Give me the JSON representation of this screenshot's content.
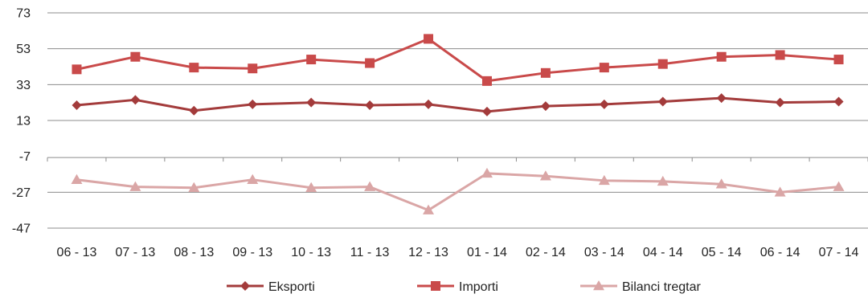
{
  "chart_data": {
    "type": "line",
    "categories": [
      "06 - 13",
      "07 - 13",
      "08 - 13",
      "09 - 13",
      "10 - 13",
      "11 - 13",
      "12 - 13",
      "01 - 14",
      "02 - 14",
      "03 - 14",
      "04 - 14",
      "05 - 14",
      "06 - 14",
      "07 - 14"
    ],
    "y_ticks": [
      "73",
      "53",
      "33",
      "13",
      "-7",
      "-27",
      "-47"
    ],
    "ylim": [
      -47,
      73
    ],
    "grid": "horizontal",
    "legend_position": "bottom",
    "series": [
      {
        "name": "Eksporti",
        "color": "#a33b3b",
        "marker": "diamond",
        "values": [
          21.5,
          24.5,
          18.5,
          22,
          23,
          21.5,
          22,
          18,
          21,
          22,
          23.5,
          25.5,
          23,
          23.5
        ]
      },
      {
        "name": "Importi",
        "color": "#c94a4a",
        "marker": "square",
        "values": [
          41.5,
          48.5,
          42.5,
          42,
          47,
          45,
          58.5,
          35,
          39.5,
          42.5,
          44.5,
          48.5,
          49.5,
          47
        ]
      },
      {
        "name": "Bilanci tregtar",
        "color": "#daa6a6",
        "marker": "triangle",
        "values": [
          -20,
          -24,
          -24.5,
          -20,
          -24.5,
          -24,
          -37,
          -16.5,
          -18,
          -20.5,
          -21,
          -22.5,
          -27,
          -24
        ]
      }
    ]
  }
}
